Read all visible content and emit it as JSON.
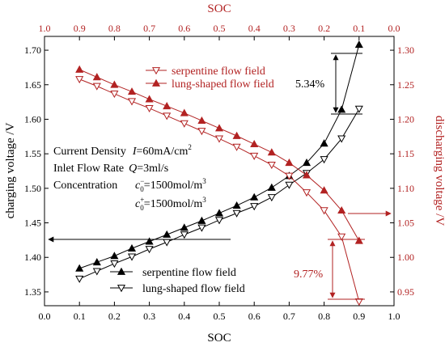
{
  "chart_data": {
    "type": "line",
    "title": "",
    "xlabel_bottom": "SOC",
    "xlabel_top": "SOC",
    "ylabel_left": "charging voltage /V",
    "ylabel_right": "discharging voltage /V",
    "xlim_bottom": [
      0.0,
      1.0
    ],
    "xticks_bottom": [
      "0.0",
      "0.1",
      "0.2",
      "0.3",
      "0.4",
      "0.5",
      "0.6",
      "0.7",
      "0.8",
      "0.9",
      "1.0"
    ],
    "xlim_top": [
      1.0,
      0.0
    ],
    "xticks_top": [
      "1.0",
      "0.9",
      "0.8",
      "0.7",
      "0.6",
      "0.5",
      "0.4",
      "0.3",
      "0.2",
      "0.1",
      "0.0"
    ],
    "ylim_left": [
      1.33,
      1.72
    ],
    "yticks_left": [
      "1.35",
      "1.40",
      "1.45",
      "1.50",
      "1.55",
      "1.60",
      "1.65",
      "1.70"
    ],
    "ylim_right": [
      0.93,
      1.32
    ],
    "yticks_right": [
      "0.95",
      "1.00",
      "1.05",
      "1.10",
      "1.15",
      "1.20",
      "1.25",
      "1.30"
    ],
    "grid": false,
    "colors": {
      "charging": "#000000",
      "discharging": "#b22222"
    },
    "charging_series": [
      {
        "name": "serpentine flow field",
        "marker": "filled-triangle-up",
        "x": [
          0.1,
          0.15,
          0.2,
          0.25,
          0.3,
          0.35,
          0.4,
          0.45,
          0.5,
          0.55,
          0.6,
          0.65,
          0.7,
          0.75,
          0.8,
          0.85,
          0.9
        ],
        "y": [
          1.384,
          1.393,
          1.402,
          1.413,
          1.423,
          1.433,
          1.443,
          1.453,
          1.464,
          1.475,
          1.487,
          1.501,
          1.518,
          1.537,
          1.565,
          1.614,
          1.708
        ]
      },
      {
        "name": "lung-shaped flow field",
        "marker": "open-triangle-down",
        "x": [
          0.1,
          0.15,
          0.2,
          0.25,
          0.3,
          0.35,
          0.4,
          0.45,
          0.5,
          0.55,
          0.6,
          0.65,
          0.7,
          0.75,
          0.8,
          0.85,
          0.9
        ],
        "y": [
          1.369,
          1.38,
          1.391,
          1.401,
          1.412,
          1.422,
          1.433,
          1.443,
          1.454,
          1.464,
          1.474,
          1.487,
          1.505,
          1.522,
          1.542,
          1.572,
          1.615
        ]
      }
    ],
    "discharging_series": [
      {
        "name": "serpentine flow field",
        "marker": "open-triangle-down",
        "soc": [
          0.9,
          0.85,
          0.8,
          0.75,
          0.7,
          0.65,
          0.6,
          0.55,
          0.5,
          0.45,
          0.4,
          0.35,
          0.3,
          0.25,
          0.2,
          0.15,
          0.1
        ],
        "y": [
          1.258,
          1.248,
          1.237,
          1.226,
          1.216,
          1.205,
          1.194,
          1.183,
          1.172,
          1.16,
          1.147,
          1.134,
          1.118,
          1.094,
          1.068,
          1.03,
          0.936
        ]
      },
      {
        "name": "lung-shaped flow field",
        "marker": "filled-triangle-up",
        "soc": [
          0.9,
          0.85,
          0.8,
          0.75,
          0.7,
          0.65,
          0.6,
          0.55,
          0.5,
          0.45,
          0.4,
          0.35,
          0.3,
          0.25,
          0.2,
          0.15,
          0.1
        ],
        "y": [
          1.272,
          1.261,
          1.25,
          1.24,
          1.229,
          1.219,
          1.209,
          1.198,
          1.187,
          1.176,
          1.164,
          1.152,
          1.137,
          1.119,
          1.097,
          1.068,
          1.024
        ]
      }
    ],
    "legends": {
      "top": [
        "serpentine flow field",
        "lung-shaped flow field"
      ],
      "bottom": [
        "serpentine flow field",
        "lung-shaped flow field"
      ]
    },
    "annotations": {
      "gap_charging": "5.34%",
      "gap_discharging": "9.77%",
      "conditions": {
        "current_density_label": "Current Density",
        "current_density_symbol": "I",
        "current_density_value": "=60mA/cm",
        "current_density_exp": "2",
        "flow_rate_label": "Inlet Flow Rate",
        "flow_rate_symbol": "Q",
        "flow_rate_value": "=3ml/s",
        "concentration_label": "Concentration",
        "conc_symbol": "c",
        "conc_minus_sup": "−",
        "conc_plus_sup": "+",
        "conc_sub": "0",
        "conc_value": "=1500mol/m",
        "conc_exp": "3"
      }
    }
  }
}
